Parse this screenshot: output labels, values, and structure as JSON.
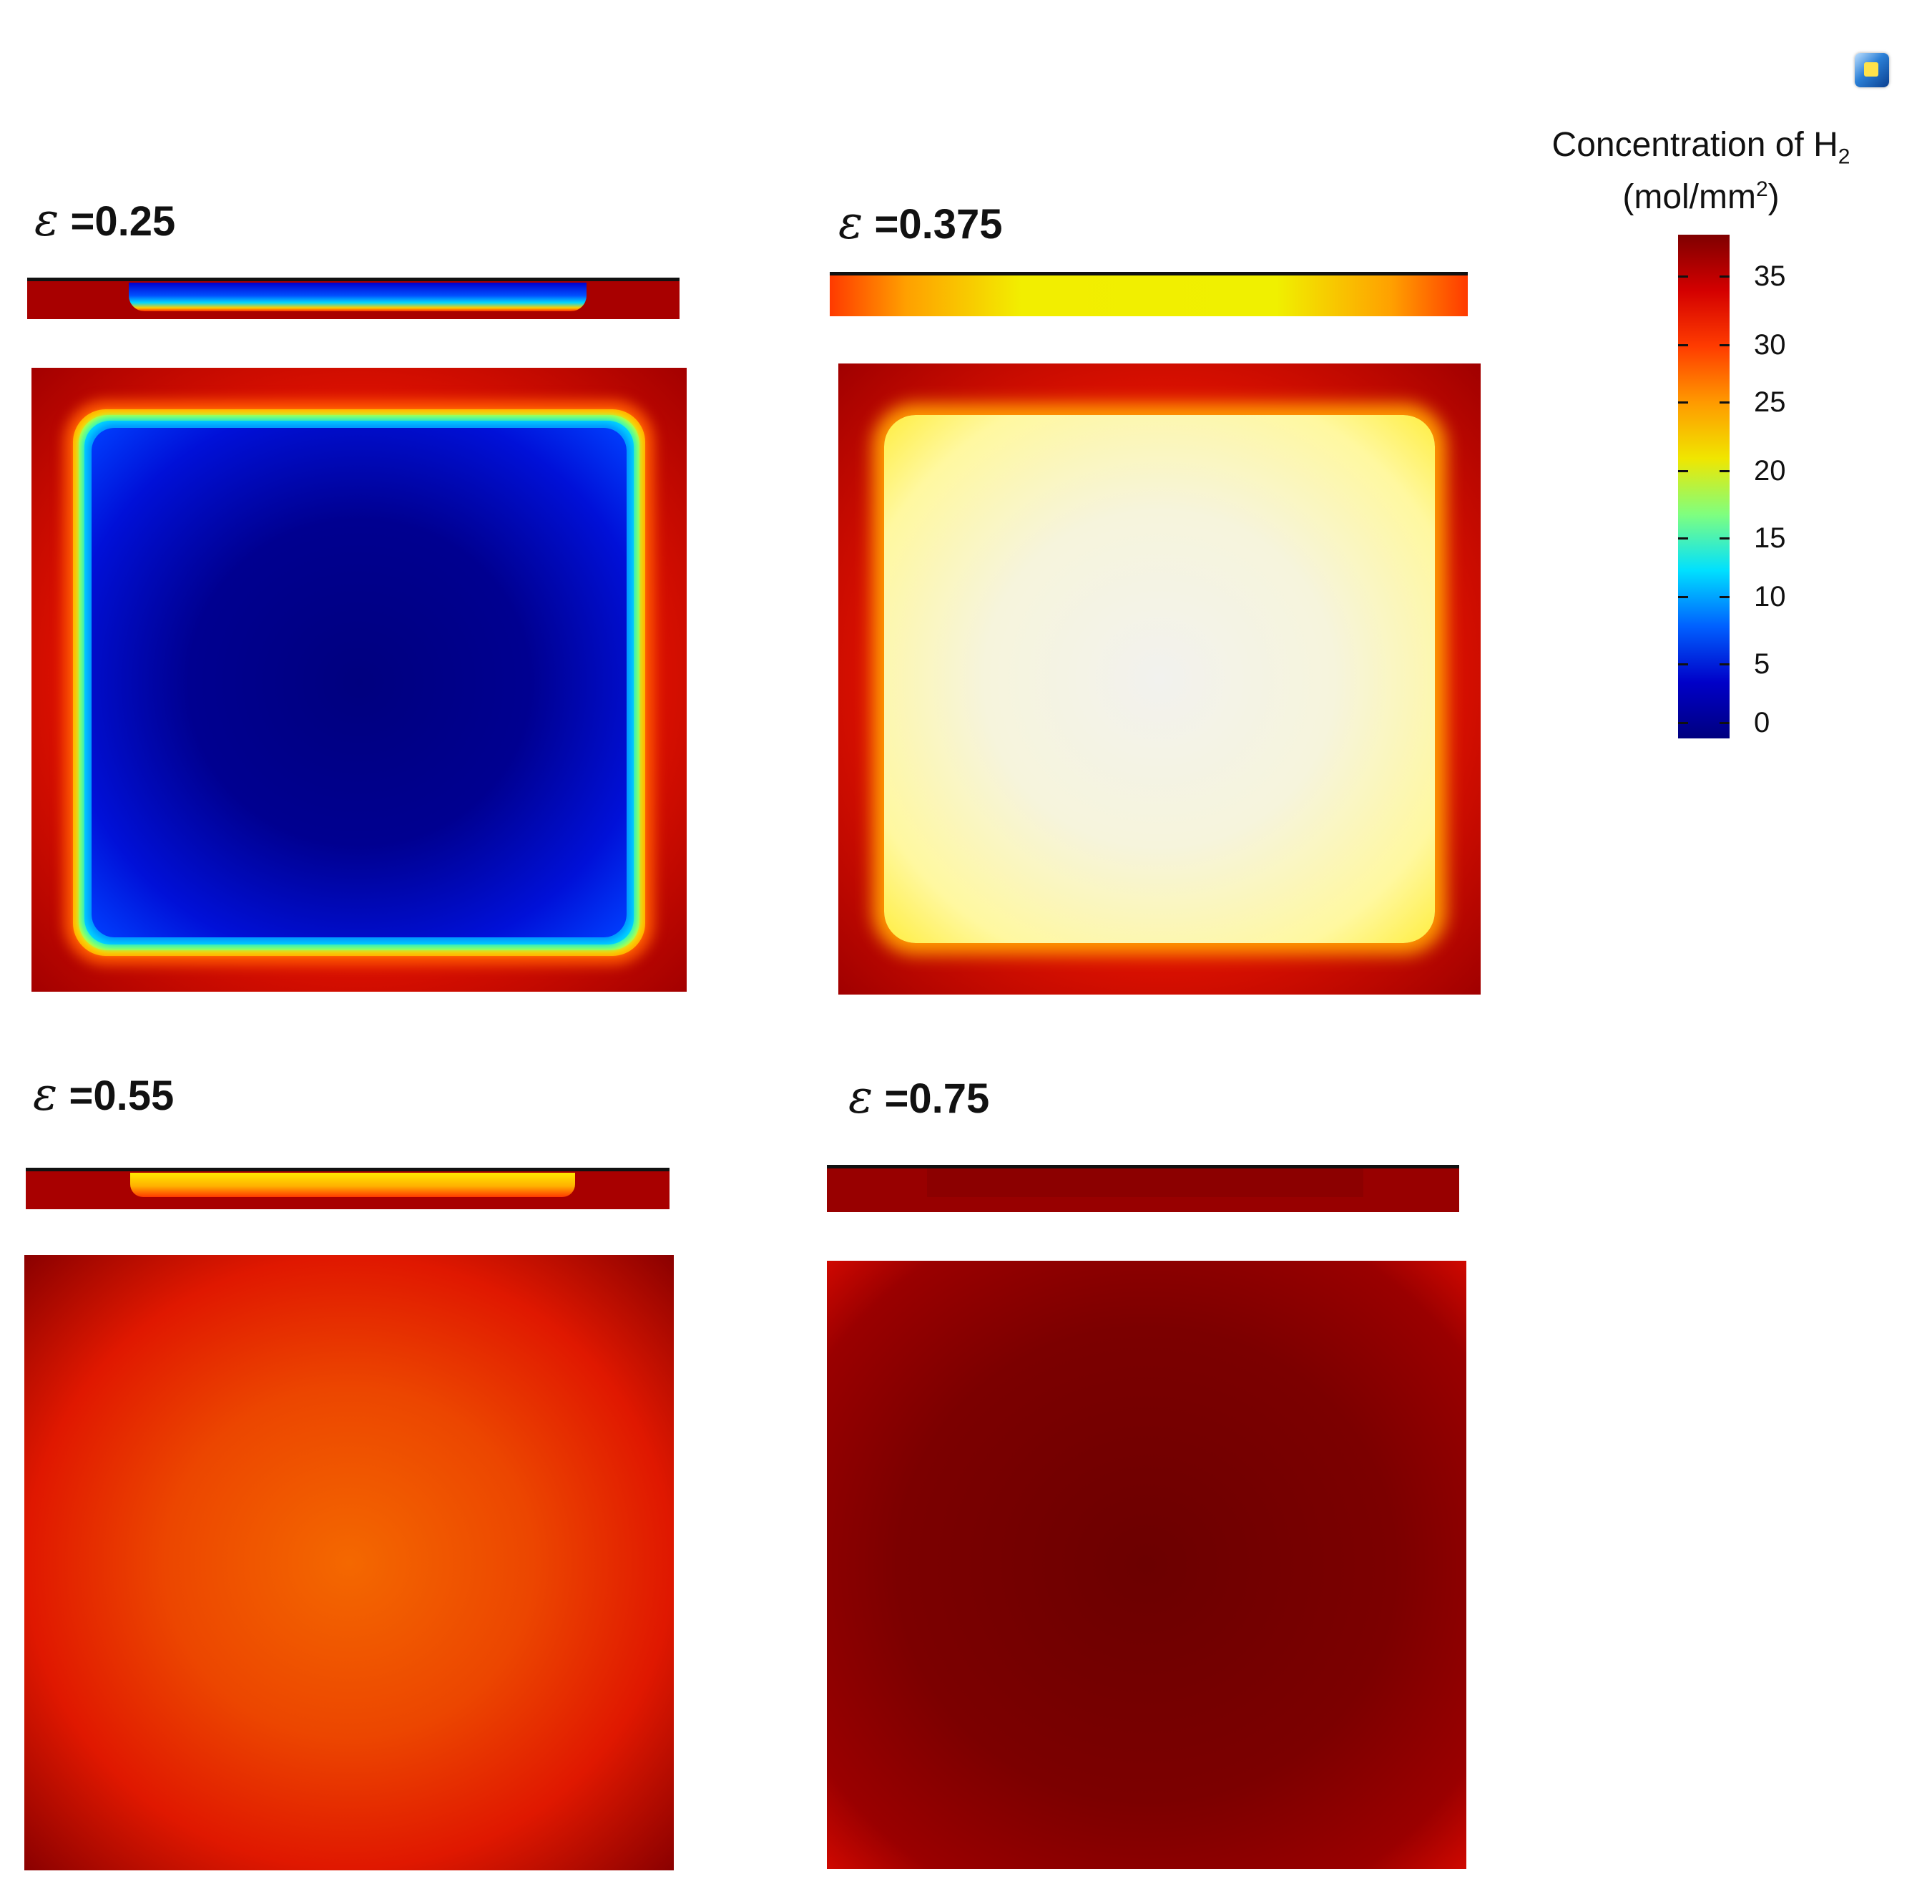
{
  "panels": [
    {
      "id": "eps-025",
      "symbol": "ε",
      "value": "=0.25"
    },
    {
      "id": "eps-0375",
      "symbol": "ε",
      "value": "=0.375"
    },
    {
      "id": "eps-055",
      "symbol": "ε",
      "value": "=0.55"
    },
    {
      "id": "eps-075",
      "symbol": "ε",
      "value": "=0.75"
    }
  ],
  "colorbar": {
    "title_line1": "Concentration of H",
    "title_sub": "2",
    "title_line2_pre": "(mol/mm",
    "title_line2_sup": "2",
    "title_line2_post": ")",
    "ticks": [
      "35",
      "30",
      "25",
      "20",
      "15",
      "10",
      "5",
      "0"
    ],
    "colors": [
      "#7f0000",
      "#d40000",
      "#ff3c00",
      "#ff9a00",
      "#f0e600",
      "#7fff7f",
      "#00e0ff",
      "#0060ff",
      "#0000c8",
      "#00007f"
    ]
  },
  "icons": {
    "app": "app-icon"
  }
}
